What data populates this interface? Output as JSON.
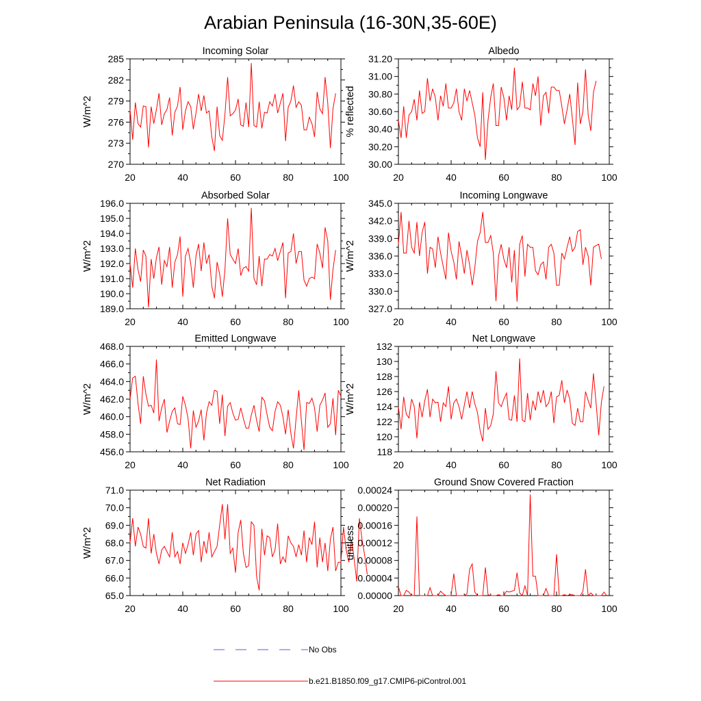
{
  "title": "Arabian Peninsula (16-30N,35-60E)",
  "colors": {
    "model": "#ff0000",
    "obs": "#5a5adc",
    "axis": "#000000"
  },
  "legend": [
    {
      "label": "No Obs",
      "style": "dashed",
      "color": "#5a5adc"
    },
    {
      "label": "b.e21.B1850.f09_g17.CMIP6-piControl.001",
      "style": "solid",
      "color": "#ff0000"
    }
  ],
  "chart_data": [
    {
      "type": "line",
      "title": "Incoming Solar",
      "ylabel": "W/m^2",
      "xlim": [
        20,
        100
      ],
      "xticks": [
        "20",
        "40",
        "60",
        "80",
        "100"
      ],
      "ylim": [
        270,
        285
      ],
      "yticks": [
        "270",
        "273",
        "276",
        "279",
        "282",
        "285"
      ],
      "x_start": 20,
      "series": [
        {
          "name": "b.e21.B1850.f09_g17.CMIP6-piControl.001",
          "values": [
            277.8,
            273.5,
            278.8,
            275.8,
            275.3,
            278.3,
            278.2,
            272.4,
            278.2,
            275.8,
            277.8,
            280.1,
            275.6,
            277.2,
            277.8,
            279.5,
            274.1,
            277.4,
            278.3,
            281.0,
            274.9,
            277.6,
            278.9,
            278.2,
            275.0,
            277.3,
            280.0,
            277.6,
            279.8,
            277.3,
            277.6,
            273.9,
            271.9,
            278.2,
            274.1,
            273.4,
            277.1,
            282.4,
            276.9,
            277.2,
            277.7,
            279.3,
            275.6,
            275.4,
            278.8,
            275.3,
            284.4,
            275.5,
            275.3,
            278.9,
            275.1,
            277.4,
            277.3,
            278.9,
            278.3,
            280.0,
            277.3,
            278.7,
            280.1,
            273.3,
            278.1,
            279.0,
            281.2,
            278.1,
            278.9,
            278.4,
            274.9,
            274.9,
            276.7,
            275.8,
            273.9,
            280.3,
            277.9,
            277.2,
            282.4,
            278.7,
            272.3,
            277.9,
            280.1
          ]
        }
      ]
    },
    {
      "type": "line",
      "title": "Albedo",
      "ylabel": "% reflected",
      "xlim": [
        20,
        100
      ],
      "xticks": [
        "20",
        "40",
        "60",
        "80",
        "100"
      ],
      "ylim": [
        30.0,
        31.2
      ],
      "yticks": [
        "30.00",
        "30.20",
        "30.40",
        "30.60",
        "30.80",
        "31.00",
        "31.20"
      ],
      "x_start": 20,
      "series": [
        {
          "name": "b.e21.B1850.f09_g17.CMIP6-piControl.001",
          "values": [
            30.5,
            30.3,
            30.66,
            30.3,
            30.56,
            30.6,
            30.74,
            30.5,
            30.84,
            30.58,
            30.6,
            30.98,
            30.72,
            30.86,
            30.76,
            30.5,
            30.78,
            30.66,
            30.92,
            30.64,
            30.64,
            30.7,
            30.86,
            30.6,
            30.5,
            30.86,
            30.72,
            30.84,
            30.7,
            30.56,
            30.3,
            30.2,
            30.82,
            30.05,
            30.5,
            30.76,
            30.92,
            30.44,
            30.44,
            30.88,
            30.76,
            30.5,
            30.78,
            30.62,
            31.1,
            30.62,
            30.66,
            30.94,
            30.64,
            30.64,
            30.62,
            30.92,
            30.78,
            31.0,
            30.44,
            30.78,
            30.82,
            30.58,
            30.88,
            30.88,
            30.84,
            30.84,
            30.66,
            30.46,
            30.62,
            30.8,
            30.52,
            30.22,
            30.93,
            30.46,
            30.6,
            31.08,
            30.56,
            30.38,
            30.82,
            30.95
          ]
        }
      ]
    },
    {
      "type": "line",
      "title": "Absorbed Solar",
      "ylabel": "W/m^2",
      "xlim": [
        20,
        100
      ],
      "xticks": [
        "20",
        "40",
        "60",
        "80",
        "100"
      ],
      "ylim": [
        189.0,
        196.0
      ],
      "yticks": [
        "189.0",
        "190.0",
        "191.0",
        "192.0",
        "193.0",
        "194.0",
        "195.0",
        "196.0"
      ],
      "x_start": 20,
      "series": [
        {
          "name": "b.e21.B1850.f09_g17.CMIP6-piControl.001",
          "values": [
            192.0,
            190.4,
            193.0,
            191.6,
            190.8,
            192.9,
            192.5,
            189.1,
            192.3,
            191.0,
            192.4,
            193.1,
            190.6,
            192.2,
            191.8,
            193.1,
            190.4,
            192.1,
            192.6,
            193.8,
            189.8,
            192.5,
            193.0,
            192.0,
            190.4,
            192.5,
            193.3,
            191.5,
            193.4,
            192.0,
            192.6,
            190.5,
            189.7,
            192.1,
            191.3,
            189.8,
            191.6,
            195.0,
            192.6,
            192.3,
            192.0,
            193.0,
            191.2,
            191.7,
            191.8,
            191.5,
            195.7,
            191.0,
            190.6,
            192.5,
            190.5,
            192.3,
            192.3,
            192.6,
            192.5,
            193.0,
            192.2,
            192.8,
            193.4,
            189.7,
            192.7,
            192.8,
            194.0,
            192.0,
            192.8,
            192.8,
            190.9,
            190.5,
            191.0,
            191.1,
            191.0,
            193.3,
            192.7,
            191.7,
            194.4,
            193.5,
            189.6,
            191.6,
            192.9
          ]
        }
      ]
    },
    {
      "type": "line",
      "title": "Incoming Longwave",
      "ylabel": "W/m^2",
      "xlim": [
        20,
        100
      ],
      "xticks": [
        "20",
        "40",
        "60",
        "80",
        "100"
      ],
      "ylim": [
        327.0,
        345.0
      ],
      "yticks": [
        "327.0",
        "330.0",
        "333.0",
        "336.0",
        "339.0",
        "342.0",
        "345.0"
      ],
      "x_start": 20,
      "series": [
        {
          "name": "b.e21.B1850.f09_g17.CMIP6-piControl.001",
          "values": [
            338.0,
            343.5,
            336.5,
            336.5,
            342.0,
            337.5,
            336.5,
            341.8,
            336.0,
            340.0,
            341.8,
            333.0,
            337.5,
            337.2,
            334.0,
            339.3,
            336.5,
            334.2,
            332.0,
            340.0,
            336.8,
            335.0,
            332.0,
            338.5,
            336.0,
            333.0,
            337.0,
            334.5,
            331.0,
            334.0,
            338.5,
            340.0,
            343.5,
            338.3,
            338.3,
            339.5,
            336.5,
            328.3,
            336.0,
            338.0,
            335.5,
            334.0,
            337.5,
            331.5,
            337.0,
            328.2,
            338.0,
            339.5,
            332.5,
            338.0,
            337.5,
            337.5,
            333.5,
            332.8,
            334.5,
            335.0,
            332.0,
            337.5,
            338.0,
            336.5,
            331.0,
            331.0,
            336.5,
            335.5,
            337.5,
            339.3,
            336.8,
            337.5,
            340.2,
            340.5,
            334.5,
            337.5,
            336.0,
            331.0,
            337.5,
            337.8,
            338.0,
            335.5
          ]
        }
      ]
    },
    {
      "type": "line",
      "title": "Emitted Longwave",
      "ylabel": "W/m^2",
      "xlim": [
        20,
        100
      ],
      "xticks": [
        "20",
        "40",
        "60",
        "80",
        "100"
      ],
      "ylim": [
        456.0,
        468.0
      ],
      "yticks": [
        "456.0",
        "458.0",
        "460.0",
        "462.0",
        "464.0",
        "466.0",
        "468.0"
      ],
      "x_start": 20,
      "series": [
        {
          "name": "b.e21.B1850.f09_g17.CMIP6-piControl.001",
          "values": [
            462.0,
            464.4,
            464.6,
            461.5,
            459.2,
            464.6,
            462.6,
            461.2,
            461.3,
            460.4,
            466.5,
            459.5,
            461.0,
            462.0,
            458.2,
            459.5,
            460.6,
            461.0,
            459.2,
            459.1,
            462.3,
            461.3,
            459.8,
            456.4,
            460.7,
            458.8,
            459.5,
            460.8,
            457.3,
            460.4,
            461.7,
            461.3,
            463.0,
            462.9,
            459.2,
            462.5,
            457.8,
            461.2,
            461.6,
            460.4,
            459.6,
            459.7,
            461.0,
            459.8,
            458.7,
            458.7,
            460.2,
            461.3,
            459.6,
            458.3,
            462.2,
            461.8,
            460.2,
            458.8,
            458.4,
            460.6,
            461.7,
            461.3,
            460.0,
            458.0,
            460.8,
            458.1,
            456.4,
            459.8,
            463.0,
            459.5,
            456.2,
            461.6,
            461.5,
            462.1,
            461.0,
            458.3,
            461.3,
            461.9,
            462.7,
            458.8,
            459.2,
            462.1,
            457.9,
            463.0,
            462.3
          ]
        }
      ]
    },
    {
      "type": "line",
      "title": "Net Longwave",
      "ylabel": "W/m^2",
      "xlim": [
        20,
        100
      ],
      "xticks": [
        "20",
        "40",
        "60",
        "80",
        "100"
      ],
      "ylim": [
        118,
        132
      ],
      "yticks": [
        "118",
        "120",
        "122",
        "124",
        "126",
        "128",
        "130",
        "132"
      ],
      "x_start": 20,
      "series": [
        {
          "name": "b.e21.B1850.f09_g17.CMIP6-piControl.001",
          "values": [
            124.0,
            121.0,
            125.3,
            123.0,
            122.5,
            125.0,
            124.0,
            119.8,
            124.6,
            122.6,
            124.8,
            126.3,
            122.6,
            125.0,
            124.5,
            124.6,
            122.0,
            124.5,
            124.0,
            126.7,
            122.3,
            124.5,
            125.0,
            124.0,
            122.3,
            124.2,
            126.0,
            123.8,
            126.0,
            124.4,
            123.2,
            120.8,
            119.4,
            123.8,
            121.0,
            121.5,
            123.0,
            128.7,
            124.5,
            124.0,
            125.0,
            125.8,
            122.3,
            122.2,
            125.5,
            122.0,
            130.4,
            122.2,
            122.0,
            125.8,
            122.2,
            124.8,
            123.5,
            126.0,
            124.5,
            126.2,
            124.0,
            124.5,
            126.0,
            121.8,
            125.3,
            125.5,
            127.5,
            124.5,
            126.2,
            125.0,
            121.8,
            121.5,
            123.8,
            122.0,
            122.0,
            126.0,
            124.8,
            123.8,
            128.4,
            124.4,
            120.2,
            124.6,
            126.7
          ]
        }
      ]
    },
    {
      "type": "line",
      "title": "Net Radiation",
      "ylabel": "W/m^2",
      "xlim": [
        20,
        100
      ],
      "xticks": [
        "20",
        "40",
        "60",
        "80",
        "100"
      ],
      "ylim": [
        65.0,
        71.0
      ],
      "yticks": [
        "65.0",
        "66.0",
        "67.0",
        "68.0",
        "69.0",
        "70.0",
        "71.0"
      ],
      "x_start": 20,
      "series": [
        {
          "name": "b.e21.B1850.f09_g17.CMIP6-piControl.001",
          "values": [
            68.0,
            69.4,
            67.8,
            68.9,
            68.5,
            67.8,
            67.7,
            69.4,
            67.4,
            68.5,
            67.4,
            66.8,
            67.6,
            67.8,
            67.5,
            67.2,
            68.6,
            67.2,
            67.5,
            66.8,
            68.0,
            67.4,
            67.9,
            68.6,
            67.3,
            68.5,
            68.7,
            66.9,
            68.1,
            67.4,
            68.6,
            67.2,
            67.5,
            67.8,
            69.0,
            70.2,
            68.2,
            70.2,
            67.4,
            67.7,
            66.3,
            68.6,
            69.3,
            67.4,
            66.6,
            66.7,
            69.2,
            69.0,
            66.1,
            65.3,
            68.8,
            67.3,
            68.4,
            68.3,
            67.2,
            67.6,
            69.1,
            66.8,
            67.2,
            66.9,
            68.4,
            68.0,
            67.8,
            67.2,
            67.9,
            67.3,
            68.7,
            66.9,
            68.3,
            67.9,
            69.2,
            66.6,
            68.3,
            66.9,
            68.0,
            66.4,
            68.2,
            68.9,
            66.4,
            66.9,
            66.9,
            68.9,
            67.6,
            66.9,
            68.2,
            67.1,
            65.8,
            69.4,
            68.2,
            67.3,
            66.2
          ]
        }
      ]
    },
    {
      "type": "line",
      "title": "Ground Snow Covered Fraction",
      "ylabel": "unitless",
      "xlim": [
        20,
        100
      ],
      "xticks": [
        "20",
        "40",
        "60",
        "80",
        "100"
      ],
      "ylim": [
        0.0,
        0.00024
      ],
      "yticks": [
        "0.00000",
        "0.00004",
        "0.00008",
        "0.00012",
        "0.00016",
        "0.00020",
        "0.00024"
      ],
      "x_start": 20,
      "series": [
        {
          "name": "b.e21.B1850.f09_g17.CMIP6-piControl.001",
          "values": [
            2e-05,
            0.0,
            0.0,
            1.2e-05,
            8e-06,
            0.0,
            0.0,
            0.00018,
            0.0,
            0.0,
            0.0,
            0.0,
            1.8e-05,
            0.0,
            0.0,
            0.0,
            1e-05,
            4e-06,
            0.0,
            0.0,
            0.0,
            5e-05,
            0.0,
            0.0,
            0.0,
            0.0,
            4e-06,
            6e-05,
            7.2e-05,
            8e-06,
            0.0,
            0.0,
            0.0,
            6.4e-05,
            2e-06,
            0.0,
            0.0,
            0.0,
            2e-06,
            0.0,
            0.0,
            1e-05,
            8e-06,
            1e-05,
            1.2e-05,
            5.2e-05,
            6e-06,
            0.0,
            2.2e-05,
            0.0,
            0.00023,
            4.4e-05,
            4.4e-05,
            0.0,
            0.0,
            0.0,
            1.6e-05,
            0.0,
            0.0,
            0.0,
            9.4e-05,
            0.0,
            0.0,
            2e-06,
            0.0,
            2e-06,
            2e-06,
            0.0,
            0.0,
            0.0,
            1e-05,
            6e-05,
            0.0,
            6e-06,
            0.0,
            0.0,
            0.0,
            0.0,
            8e-06,
            0.0
          ]
        }
      ]
    }
  ]
}
